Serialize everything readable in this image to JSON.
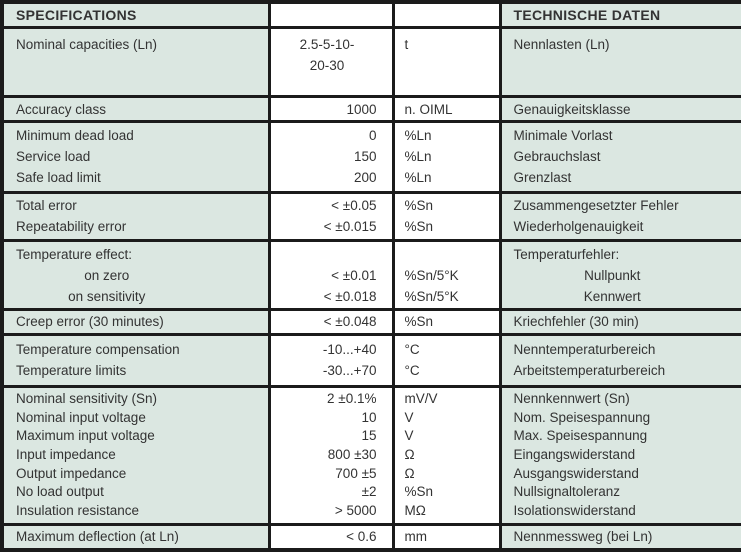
{
  "table": {
    "header": {
      "left": "SPECIFICATIONS",
      "right": "TECHNISCHE DATEN"
    },
    "colors": {
      "row_bg": "#dbe7e1",
      "cell_bg": "#ffffff",
      "border": "#1b1b1b",
      "text": "#333333"
    },
    "groups": [
      {
        "valign": "top",
        "value_align": "center",
        "lines": [
          {
            "en": "Nominal capacities (Ln)",
            "value": "2.5-5-10-",
            "unit": "t",
            "de": "Nennlasten (Ln)"
          },
          {
            "en": "",
            "value": "20-30",
            "unit": "",
            "de": ""
          }
        ]
      },
      {
        "lines": [
          {
            "en": "Accuracy class",
            "value": "1000",
            "unit": "n. OIML",
            "de": "Genauigkeitsklasse"
          }
        ]
      },
      {
        "lines": [
          {
            "en": "Minimum dead load",
            "value": "0",
            "unit": "%Ln",
            "de": "Minimale Vorlast"
          },
          {
            "en": "Service load",
            "value": "150",
            "unit": "%Ln",
            "de": "Gebrauchslast"
          },
          {
            "en": "Safe load limit",
            "value": "200",
            "unit": "%Ln",
            "de": "Grenzlast"
          }
        ]
      },
      {
        "lines": [
          {
            "en": "Total error",
            "value": "< ±0.05",
            "unit": "%Sn",
            "de": "Zusammengesetzter Fehler"
          },
          {
            "en": "Repeatability error",
            "value": "< ±0.015",
            "unit": "%Sn",
            "de": "Wiederholgenauigkeit"
          }
        ]
      },
      {
        "lines": [
          {
            "en": "Temperature effect:",
            "value": "",
            "unit": "",
            "de": "Temperaturfehler:"
          },
          {
            "en": "on zero",
            "value": "< ±0.01",
            "unit": "%Sn/5°K",
            "de": "Nullpunkt",
            "indent": true
          },
          {
            "en": "on sensitivity",
            "value": "< ±0.018",
            "unit": "%Sn/5°K",
            "de": "Kennwert",
            "indent": true
          }
        ]
      },
      {
        "lines": [
          {
            "en": "Creep error (30 minutes)",
            "value": "< ±0.048",
            "unit": "%Sn",
            "de": "Kriechfehler (30 min)"
          }
        ]
      },
      {
        "lines": [
          {
            "en": "Temperature compensation",
            "value": "-10...+40",
            "unit": "°C",
            "de": "Nenntemperaturbereich"
          },
          {
            "en": "Temperature limits",
            "value": "-30...+70",
            "unit": "°C",
            "de": "Arbeitstemperaturbereich"
          }
        ]
      },
      {
        "compact": true,
        "lines": [
          {
            "en": "Nominal sensitivity (Sn)",
            "value": "2 ±0.1%",
            "unit": "mV/V",
            "de": "Nennkennwert (Sn)"
          },
          {
            "en": "Nominal input voltage",
            "value": "10",
            "unit": "V",
            "de": "Nom. Speisespannung"
          },
          {
            "en": "Maximum input voltage",
            "value": "15",
            "unit": "V",
            "de": "Max. Speisespannung"
          },
          {
            "en": "Input impedance",
            "value": "800 ±30",
            "unit": "Ω",
            "de": "Eingangswiderstand"
          },
          {
            "en": "Output impedance",
            "value": "700 ±5",
            "unit": "Ω",
            "de": "Ausgangswiderstand"
          },
          {
            "en": "No load output",
            "value": "±2",
            "unit": "%Sn",
            "de": "Nullsignaltoleranz"
          },
          {
            "en": "Insulation resistance",
            "value": "> 5000",
            "unit": "MΩ",
            "de": "Isolationswiderstand"
          }
        ]
      },
      {
        "lines": [
          {
            "en": "Maximum deflection (at Ln)",
            "value": "< 0.6",
            "unit": "mm",
            "de": "Nennmessweg (bei Ln)"
          }
        ]
      }
    ]
  }
}
